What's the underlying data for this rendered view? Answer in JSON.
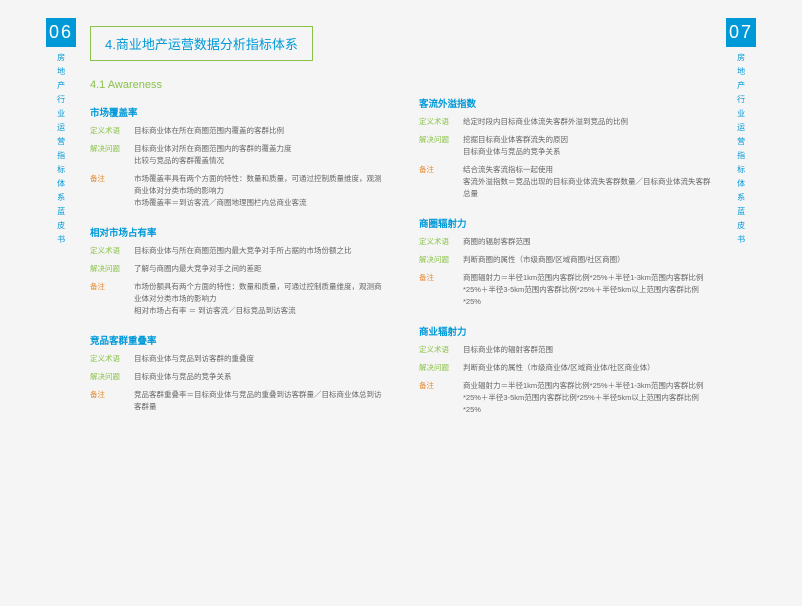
{
  "colors": {
    "blue": "#0099d8",
    "green": "#8bc34a",
    "orange": "#e68a2e",
    "text": "#666666",
    "bg": "#f5f5f5"
  },
  "fonts": {
    "title": 13,
    "subsec": 11,
    "metric_title": 9.5,
    "body": 7.5
  },
  "leftTab": {
    "pageNum": "06",
    "label_pre": "商",
    "label_green": "业",
    "label_mid": "地",
    "label_post": "产",
    "label_suffix": "房地产行业运营指标体系蓝皮书"
  },
  "rightTab": {
    "pageNum": "07",
    "label_pre": "商",
    "label_green": "业",
    "label_mid": "地",
    "label_post": "产",
    "label_suffix": "房地产行业运营指标体系蓝皮书"
  },
  "title": "4.商业地产运营数据分析指标体系",
  "subsection": "4.1 Awareness",
  "labels": {
    "def": "定义术语",
    "solve": "解决问题",
    "note": "备注"
  },
  "left": [
    {
      "title": "市场覆盖率",
      "def": "目标商业体在所在商圈范围内覆盖的客群比例",
      "solve": "目标商业体对所在商圈范围内的客群的覆盖力度\n比较与竞品的客群覆盖情况",
      "note": "市场覆盖率具有两个方面的特性：数量和质量，可通过控制质量维度，观测商业体对分类市场的影响力\n市场覆盖率＝到访客流／商圈地理围栏内总商业客流"
    },
    {
      "title": "相对市场占有率",
      "def": "目标商业体与所在商圈范围内最大竞争对手所占据的市场份额之比",
      "solve": "了解与商圈内最大竞争对手之间的差距",
      "note": "市场份额具有两个方面的特性：数量和质量，可通过控制质量维度，观测商业体对分类市场的影响力\n相对市场占有率 ＝ 到访客流／目标竞品到访客流"
    },
    {
      "title": "竞品客群重叠率",
      "def": "目标商业体与竞品到访客群的重叠度",
      "solve": "目标商业体与竞品的竞争关系",
      "note": "竞品客群重叠率＝目标商业体与竞品的重叠到访客群量／目标商业体总到访客群量"
    }
  ],
  "right": [
    {
      "title": "客流外溢指数",
      "def": "给定时段内目标商业体流失客群外溢到竞品的比例",
      "solve": "挖掘目标商业体客群流失的原因\n目标商业体与竞品的竞争关系",
      "note": "结合流失客流指标一起使用\n客流外溢指数＝竞品出现的目标商业体流失客群数量／目标商业体流失客群总量"
    },
    {
      "title": "商圈辐射力",
      "def": "商圈的辐射客群范围",
      "solve": "判断商圈的属性（市级商圈/区域商圈/社区商圈）",
      "note": "商圈辐射力＝半径1km范围内客群比例*25%＋半径1-3km范围内客群比例*25%＋半径3-5km范围内客群比例*25%＋半径5km以上范围内客群比例*25%"
    },
    {
      "title": "商业辐射力",
      "def": "目标商业体的辐射客群范围",
      "solve": "判断商业体的属性（市级商业体/区域商业体/社区商业体）",
      "note": "商业辐射力＝半径1km范围内客群比例*25%＋半径1-3km范围内客群比例*25%＋半径3-5km范围内客群比例*25%＋半径5km以上范围内客群比例*25%"
    }
  ]
}
